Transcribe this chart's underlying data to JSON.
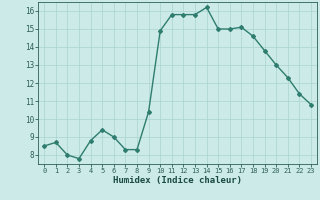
{
  "x": [
    0,
    1,
    2,
    3,
    4,
    5,
    6,
    7,
    8,
    9,
    10,
    11,
    12,
    13,
    14,
    15,
    16,
    17,
    18,
    19,
    20,
    21,
    22,
    23
  ],
  "y": [
    8.5,
    8.7,
    8.0,
    7.8,
    8.8,
    9.4,
    9.0,
    8.3,
    8.3,
    10.4,
    14.9,
    15.8,
    15.8,
    15.8,
    16.2,
    15.0,
    15.0,
    15.1,
    14.6,
    13.8,
    13.0,
    12.3,
    11.4,
    10.8
  ],
  "xlabel": "Humidex (Indice chaleur)",
  "line_color": "#2e7d6e",
  "marker": "D",
  "marker_size": 2,
  "line_width": 1.0,
  "bg_color": "#cceae8",
  "grid_color": "#aad4d0",
  "tick_label_color": "#2e5f58",
  "axis_color": "#2e5f58",
  "xlabel_color": "#1a4a44",
  "ylim": [
    7.5,
    16.5
  ],
  "xlim": [
    -0.5,
    23.5
  ],
  "yticks": [
    8,
    9,
    10,
    11,
    12,
    13,
    14,
    15,
    16
  ],
  "xticks": [
    0,
    1,
    2,
    3,
    4,
    5,
    6,
    7,
    8,
    9,
    10,
    11,
    12,
    13,
    14,
    15,
    16,
    17,
    18,
    19,
    20,
    21,
    22,
    23
  ]
}
